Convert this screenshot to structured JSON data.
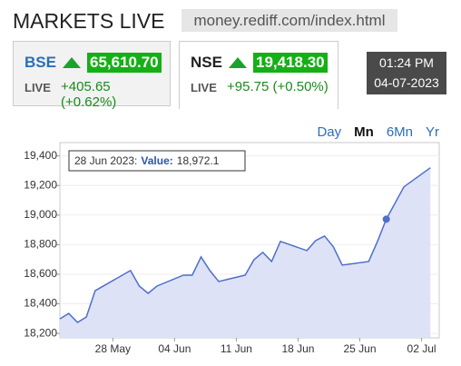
{
  "header": {
    "title": "MARKETS LIVE",
    "url": "money.rediff.com/index.html"
  },
  "indices": [
    {
      "name": "BSE",
      "value": "65,610.70",
      "status": "LIVE",
      "change": "+405.65 (+0.62%)"
    },
    {
      "name": "NSE",
      "value": "19,418.30",
      "status": "LIVE",
      "change": "+95.75 (+0.50%)"
    }
  ],
  "clock": {
    "time": "01:24 PM",
    "date": "04-07-2023"
  },
  "periods": [
    "Day",
    "Mn",
    "6Mn",
    "Yr"
  ],
  "chart_data": {
    "type": "area",
    "color": "#4f6fc8",
    "x": [
      "22 May",
      "23 May",
      "24 May",
      "25 May",
      "26 May",
      "30 May",
      "31 May",
      "01 Jun",
      "02 Jun",
      "05 Jun",
      "06 Jun",
      "07 Jun",
      "08 Jun",
      "09 Jun",
      "12 Jun",
      "13 Jun",
      "14 Jun",
      "15 Jun",
      "16 Jun",
      "19 Jun",
      "20 Jun",
      "21 Jun",
      "22 Jun",
      "23 Jun",
      "26 Jun",
      "27 Jun",
      "28 Jun",
      "30 Jun",
      "03 Jul"
    ],
    "values": [
      18298,
      18335,
      18274,
      18311,
      18489,
      18625,
      18520,
      18471,
      18520,
      18594,
      18594,
      18717,
      18625,
      18551,
      18594,
      18698,
      18748,
      18686,
      18822,
      18760,
      18828,
      18858,
      18785,
      18662,
      18686,
      18822,
      18972.1,
      19191,
      19320
    ],
    "xlim": [
      "22 May",
      "04 Jul"
    ],
    "xticks": [
      "28 May",
      "04 Jun",
      "11 Jun",
      "18 Jun",
      "25 Jun",
      "02 Jul"
    ],
    "ylim": [
      18170,
      19490
    ],
    "yticks": [
      {
        "value": 18200,
        "label": "18,200"
      },
      {
        "value": 18400,
        "label": "18,400"
      },
      {
        "value": 18600,
        "label": "18,600"
      },
      {
        "value": 18800,
        "label": "18,800"
      },
      {
        "value": 19000,
        "label": "19,000"
      },
      {
        "value": 19200,
        "label": "19,200"
      },
      {
        "value": 19400,
        "label": "19,400"
      }
    ],
    "grid": true,
    "tooltip": {
      "date": "28 Jun 2023:",
      "key": "Value:",
      "value": "18,972.1"
    }
  }
}
